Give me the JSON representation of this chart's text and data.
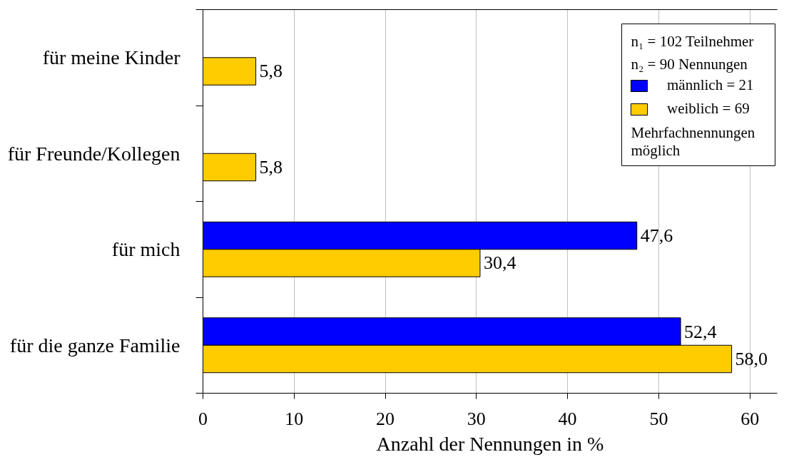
{
  "chart_data": {
    "type": "bar",
    "orientation": "horizontal",
    "categories": [
      "für meine Kinder",
      "für Freunde/Kollegen",
      "für mich",
      "für die ganze Familie"
    ],
    "series": [
      {
        "name": "männlich = 21",
        "color": "#0000ff",
        "values": [
          null,
          null,
          47.6,
          52.4
        ],
        "value_labels": [
          null,
          null,
          "47,6",
          "52,4"
        ]
      },
      {
        "name": "weiblich = 69",
        "color": "#ffcc00",
        "values": [
          5.8,
          5.8,
          30.4,
          58.0
        ],
        "value_labels": [
          "5,8",
          "5,8",
          "30,4",
          "58,0"
        ]
      }
    ],
    "xlabel": "Anzahl der Nennungen in %",
    "xlim": [
      0,
      63
    ],
    "xticks": [
      0,
      10,
      20,
      30,
      40,
      50,
      60
    ],
    "grid": "x",
    "legend": "top right",
    "legend_title": "n₁ = 102 Teilnehmer\nn₂ = 90 Nennungen",
    "annotations": [
      "Mehrfachnennungen möglich"
    ]
  }
}
